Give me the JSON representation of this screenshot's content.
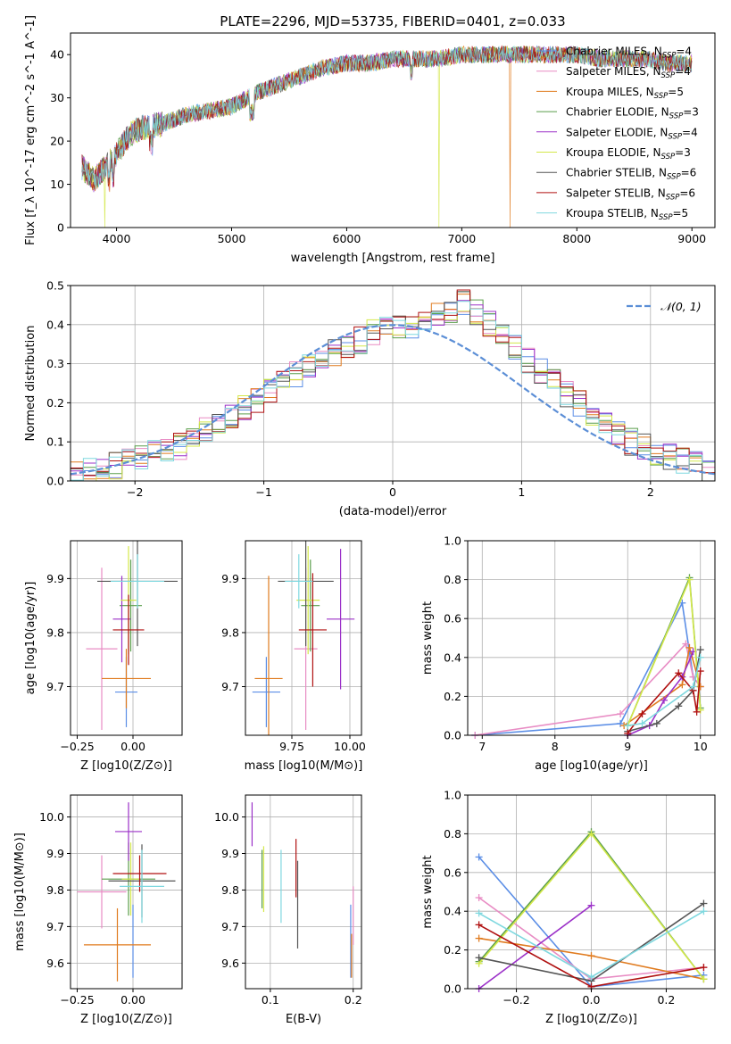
{
  "title": "PLATE=2296, MJD=53735, FIBERID=0401, z=0.033",
  "colors": {
    "Chabrier MILES": "#5b8ee6",
    "Salpeter MILES": "#e88cc4",
    "Kroupa MILES": "#e07b1f",
    "Chabrier ELODIE": "#5a9e4b",
    "Salpeter ELODIE": "#9b30c8",
    "Kroupa ELODIE": "#d4e84a",
    "Chabrier STELIB": "#555555",
    "Salpeter STELIB": "#b01010",
    "Kroupa STELIB": "#7fd8df",
    "normal_curve": "#5b8ed6"
  },
  "chart_data": [
    {
      "type": "line",
      "panel": "spectrum",
      "xlabel": "wavelength [Angstrom, rest frame]",
      "ylabel": "Flux [f_λ 10^-17 erg cm^-2 s^-1 A^-1]",
      "xlim": [
        3600,
        9200
      ],
      "ylim": [
        0,
        45
      ],
      "xticks": [
        "4000",
        "5000",
        "6000",
        "7000",
        "8000",
        "9000"
      ],
      "yticks": [
        "0",
        "10",
        "20",
        "30",
        "40"
      ],
      "grid": false,
      "legend_position": "upper-right",
      "legend": [
        {
          "name": "Chabrier MILES",
          "nssp": "4"
        },
        {
          "name": "Salpeter MILES",
          "nssp": "4"
        },
        {
          "name": "Kroupa MILES",
          "nssp": "5"
        },
        {
          "name": "Chabrier ELODIE",
          "nssp": "3"
        },
        {
          "name": "Salpeter ELODIE",
          "nssp": "4"
        },
        {
          "name": "Kroupa ELODIE",
          "nssp": "3"
        },
        {
          "name": "Chabrier STELIB",
          "nssp": "6"
        },
        {
          "name": "Salpeter STELIB",
          "nssp": "6"
        },
        {
          "name": "Kroupa STELIB",
          "nssp": "5"
        }
      ],
      "continuum": {
        "x": [
          3700,
          3800,
          3900,
          4000,
          4100,
          4200,
          4400,
          4600,
          4800,
          5000,
          5200,
          5400,
          5600,
          5800,
          6000,
          6200,
          6400,
          6600,
          6800,
          7000,
          7200,
          7400,
          7600,
          7800,
          8000,
          8200,
          8400,
          8600,
          8800,
          9000
        ],
        "y": [
          14,
          11,
          14,
          17,
          21,
          23,
          24,
          26,
          27,
          28,
          31,
          33,
          35,
          37,
          38,
          38,
          39,
          39,
          39,
          40,
          40,
          40,
          40,
          40,
          40,
          39,
          39,
          39,
          38,
          38
        ]
      },
      "dropouts": [
        {
          "series": "Kroupa ELODIE",
          "x": 3900
        },
        {
          "series": "Kroupa ELODIE",
          "x": 6800
        },
        {
          "series": "Kroupa MILES",
          "x": 7420
        }
      ]
    },
    {
      "type": "histogram",
      "panel": "residuals",
      "xlabel": "(data-model)/error",
      "ylabel": "Normed distribution",
      "xlim": [
        -2.5,
        2.5
      ],
      "ylim": [
        0,
        0.5
      ],
      "xticks": [
        "−2",
        "−1",
        "0",
        "1",
        "2"
      ],
      "yticks": [
        "0.0",
        "0.1",
        "0.2",
        "0.3",
        "0.4",
        "0.5"
      ],
      "grid": true,
      "bin_width": 0.1,
      "legend": [
        "𝒩(0, 1)"
      ],
      "legend_position": "upper-right",
      "envelope": [
        0.02,
        0.03,
        0.03,
        0.04,
        0.05,
        0.06,
        0.07,
        0.08,
        0.09,
        0.11,
        0.13,
        0.15,
        0.17,
        0.19,
        0.21,
        0.23,
        0.25,
        0.27,
        0.29,
        0.31,
        0.33,
        0.35,
        0.36,
        0.38,
        0.39,
        0.4,
        0.4,
        0.41,
        0.42,
        0.44,
        0.46,
        0.43,
        0.4,
        0.37,
        0.34,
        0.31,
        0.28,
        0.25,
        0.22,
        0.2,
        0.17,
        0.15,
        0.12,
        0.1,
        0.09,
        0.07,
        0.06,
        0.05,
        0.04,
        0.03
      ]
    },
    {
      "type": "scatter",
      "panel": "age-vs-Z",
      "xlabel": "Z [log10(Z/Z⊙)]",
      "ylabel": "age  [log10(age/yr)]",
      "xlim": [
        -0.28,
        0.22
      ],
      "ylim": [
        9.61,
        9.97
      ],
      "xticks": [
        "−0.25",
        "0.00"
      ],
      "yticks": [
        "9.7",
        "9.8",
        "9.9"
      ],
      "grid": true,
      "points": [
        {
          "series": "Chabrier MILES",
          "x": -0.03,
          "y": 9.69,
          "xerr": 0.05,
          "yerr": 0.065
        },
        {
          "series": "Salpeter MILES",
          "x": -0.14,
          "y": 9.77,
          "xerr": 0.07,
          "yerr": 0.15
        },
        {
          "series": "Kroupa MILES",
          "x": -0.03,
          "y": 9.715,
          "xerr": 0.11,
          "yerr": 0.055
        },
        {
          "series": "Chabrier ELODIE",
          "x": -0.01,
          "y": 9.85,
          "xerr": 0.05,
          "yerr": 0.085
        },
        {
          "series": "Salpeter ELODIE",
          "x": -0.05,
          "y": 9.825,
          "xerr": 0.04,
          "yerr": 0.08
        },
        {
          "series": "Kroupa ELODIE",
          "x": -0.02,
          "y": 9.86,
          "xerr": 0.035,
          "yerr": 0.1
        },
        {
          "series": "Chabrier STELIB",
          "x": 0.02,
          "y": 9.895,
          "xerr": 0.18,
          "yerr": 0.12
        },
        {
          "series": "Salpeter STELIB",
          "x": -0.02,
          "y": 9.805,
          "xerr": 0.07,
          "yerr": 0.065
        },
        {
          "series": "Kroupa STELIB",
          "x": 0.02,
          "y": 9.895,
          "xerr": 0.12,
          "yerr": 0.05
        }
      ]
    },
    {
      "type": "scatter",
      "panel": "age-vs-mass",
      "xlabel": "mass [log10(M/M⊙)]",
      "ylabel": "",
      "xlim": [
        9.55,
        10.05
      ],
      "ylim": [
        9.61,
        9.97
      ],
      "xticks": [
        "9.75",
        "10.00"
      ],
      "yticks": [
        "9.7",
        "9.8",
        "9.9"
      ],
      "grid": true,
      "points": [
        {
          "series": "Chabrier MILES",
          "x": 9.64,
          "y": 9.69,
          "xerr": 0.06,
          "yerr": 0.065
        },
        {
          "series": "Salpeter MILES",
          "x": 9.81,
          "y": 9.77,
          "xerr": 0.05,
          "yerr": 0.15
        },
        {
          "series": "Kroupa MILES",
          "x": 9.65,
          "y": 9.715,
          "xerr": 0.06,
          "yerr": 0.19
        },
        {
          "series": "Chabrier ELODIE",
          "x": 9.83,
          "y": 9.85,
          "xerr": 0.04,
          "yerr": 0.085
        },
        {
          "series": "Salpeter ELODIE",
          "x": 9.96,
          "y": 9.825,
          "xerr": 0.06,
          "yerr": 0.13
        },
        {
          "series": "Kroupa ELODIE",
          "x": 9.82,
          "y": 9.86,
          "xerr": 0.05,
          "yerr": 0.1
        },
        {
          "series": "Chabrier STELIB",
          "x": 9.81,
          "y": 9.895,
          "xerr": 0.12,
          "yerr": 0.12
        },
        {
          "series": "Salpeter STELIB",
          "x": 9.84,
          "y": 9.805,
          "xerr": 0.06,
          "yerr": 0.105
        },
        {
          "series": "Kroupa STELIB",
          "x": 9.78,
          "y": 9.895,
          "xerr": 0.06,
          "yerr": 0.05
        }
      ]
    },
    {
      "type": "line",
      "panel": "weight-vs-age",
      "xlabel": "age  [log10(age/yr)]",
      "ylabel": "mass weight",
      "xlim": [
        6.8,
        10.2
      ],
      "ylim": [
        0,
        1.0
      ],
      "xticks": [
        "7",
        "8",
        "9",
        "10"
      ],
      "yticks": [
        "0.0",
        "0.2",
        "0.4",
        "0.6",
        "0.8",
        "1.0"
      ],
      "grid": true,
      "series": [
        {
          "name": "Chabrier MILES",
          "x": [
            6.9,
            8.9,
            9.75,
            9.9,
            10.0
          ],
          "y": [
            0.0,
            0.06,
            0.68,
            0.3,
            0.25
          ]
        },
        {
          "name": "Salpeter MILES",
          "x": [
            6.9,
            8.9,
            9.8,
            9.9,
            10.0
          ],
          "y": [
            0.0,
            0.11,
            0.47,
            0.3,
            0.25
          ]
        },
        {
          "name": "Kroupa MILES",
          "x": [
            8.95,
            9.75,
            9.85,
            10.0
          ],
          "y": [
            0.05,
            0.26,
            0.45,
            0.25
          ]
        },
        {
          "name": "Chabrier ELODIE",
          "x": [
            9.0,
            9.85,
            10.0
          ],
          "y": [
            0.05,
            0.81,
            0.14
          ]
        },
        {
          "name": "Salpeter ELODIE",
          "x": [
            9.0,
            9.3,
            9.5,
            9.75,
            9.9
          ],
          "y": [
            0.0,
            0.05,
            0.18,
            0.3,
            0.43
          ]
        },
        {
          "name": "Kroupa ELODIE",
          "x": [
            9.0,
            9.85,
            10.0
          ],
          "y": [
            0.05,
            0.8,
            0.13
          ]
        },
        {
          "name": "Chabrier STELIB",
          "x": [
            9.0,
            9.4,
            9.7,
            9.9,
            10.0
          ],
          "y": [
            0.02,
            0.06,
            0.15,
            0.23,
            0.44
          ]
        },
        {
          "name": "Salpeter STELIB",
          "x": [
            9.0,
            9.2,
            9.7,
            9.9,
            9.95,
            10.0
          ],
          "y": [
            0.01,
            0.11,
            0.32,
            0.23,
            0.12,
            0.33
          ]
        },
        {
          "name": "Kroupa STELIB",
          "x": [
            9.0,
            9.2,
            9.9,
            10.0
          ],
          "y": [
            0.05,
            0.06,
            0.25,
            0.4
          ]
        }
      ]
    },
    {
      "type": "scatter",
      "panel": "mass-vs-Z",
      "xlabel": "Z [log10(Z/Z⊙)]",
      "ylabel": "mass [log10(M/M⊙)]",
      "xlim": [
        -0.28,
        0.22
      ],
      "ylim": [
        9.53,
        10.06
      ],
      "xticks": [
        "−0.25",
        "0.00"
      ],
      "yticks": [
        "9.6",
        "9.7",
        "9.8",
        "9.9",
        "10.0"
      ],
      "grid": true,
      "points": [
        {
          "series": "Chabrier MILES",
          "x": 0.0,
          "y": 9.66,
          "xerr": 0.0,
          "yerr": 0.1
        },
        {
          "series": "Salpeter MILES",
          "x": -0.14,
          "y": 9.795,
          "xerr": 0.11,
          "yerr": 0.1
        },
        {
          "series": "Kroupa MILES",
          "x": -0.07,
          "y": 9.65,
          "xerr": 0.15,
          "yerr": 0.1
        },
        {
          "series": "Chabrier ELODIE",
          "x": -0.02,
          "y": 9.83,
          "xerr": 0.12,
          "yerr": 0.1
        },
        {
          "series": "Salpeter ELODIE",
          "x": -0.02,
          "y": 9.96,
          "xerr": 0.06,
          "yerr": 0.08
        },
        {
          "series": "Kroupa ELODIE",
          "x": -0.01,
          "y": 9.83,
          "xerr": 0.04,
          "yerr": 0.1
        },
        {
          "series": "Chabrier STELIB",
          "x": 0.04,
          "y": 9.825,
          "xerr": 0.15,
          "yerr": 0.1
        },
        {
          "series": "Salpeter STELIB",
          "x": 0.03,
          "y": 9.845,
          "xerr": 0.12,
          "yerr": 0.05
        },
        {
          "series": "Kroupa STELIB",
          "x": 0.04,
          "y": 9.81,
          "xerr": 0.1,
          "yerr": 0.1
        }
      ]
    },
    {
      "type": "scatter",
      "panel": "mass-vs-ebv",
      "xlabel": "E(B-V)",
      "ylabel": "",
      "xlim": [
        0.07,
        0.21
      ],
      "ylim": [
        9.53,
        10.06
      ],
      "xticks": [
        "0.1",
        "0.2"
      ],
      "yticks": [
        "9.6",
        "9.7",
        "9.8",
        "9.9",
        "10.0"
      ],
      "grid": true,
      "points": [
        {
          "series": "Chabrier MILES",
          "x": 0.197,
          "y": 9.66,
          "yerr": 0.1
        },
        {
          "series": "Salpeter MILES",
          "x": 0.2,
          "y": 9.73,
          "yerr": 0.08
        },
        {
          "series": "Kroupa MILES",
          "x": 0.198,
          "y": 9.62,
          "yerr": 0.06
        },
        {
          "series": "Chabrier ELODIE",
          "x": 0.09,
          "y": 9.83,
          "yerr": 0.08
        },
        {
          "series": "Salpeter ELODIE",
          "x": 0.078,
          "y": 9.98,
          "yerr": 0.06
        },
        {
          "series": "Kroupa ELODIE",
          "x": 0.092,
          "y": 9.83,
          "yerr": 0.09
        },
        {
          "series": "Chabrier STELIB",
          "x": 0.133,
          "y": 9.76,
          "yerr": 0.12
        },
        {
          "series": "Salpeter STELIB",
          "x": 0.131,
          "y": 9.86,
          "yerr": 0.08
        },
        {
          "series": "Kroupa STELIB",
          "x": 0.113,
          "y": 9.81,
          "yerr": 0.1
        }
      ]
    },
    {
      "type": "line",
      "panel": "weight-vs-Z",
      "xlabel": "Z [log10(Z/Z⊙)]",
      "ylabel": "mass weight",
      "xlim": [
        -0.33,
        0.33
      ],
      "ylim": [
        0,
        1.0
      ],
      "xticks": [
        "−0.2",
        "0.0",
        "0.2"
      ],
      "yticks": [
        "0.0",
        "0.2",
        "0.4",
        "0.6",
        "0.8",
        "1.0"
      ],
      "grid": true,
      "series": [
        {
          "name": "Chabrier MILES",
          "x": [
            -0.3,
            0.0,
            0.3
          ],
          "y": [
            0.68,
            0.01,
            0.07
          ]
        },
        {
          "name": "Salpeter MILES",
          "x": [
            -0.3,
            0.0,
            0.3
          ],
          "y": [
            0.47,
            0.05,
            0.11
          ]
        },
        {
          "name": "Kroupa MILES",
          "x": [
            -0.3,
            0.0,
            0.3
          ],
          "y": [
            0.26,
            0.17,
            0.05
          ]
        },
        {
          "name": "Chabrier ELODIE",
          "x": [
            -0.3,
            0.0,
            0.3
          ],
          "y": [
            0.14,
            0.81,
            0.05
          ]
        },
        {
          "name": "Salpeter ELODIE",
          "x": [
            -0.3,
            0.0
          ],
          "y": [
            0.0,
            0.43
          ]
        },
        {
          "name": "Kroupa ELODIE",
          "x": [
            -0.3,
            0.0,
            0.3
          ],
          "y": [
            0.13,
            0.8,
            0.05
          ]
        },
        {
          "name": "Chabrier STELIB",
          "x": [
            -0.3,
            0.0,
            0.3
          ],
          "y": [
            0.16,
            0.04,
            0.44
          ]
        },
        {
          "name": "Salpeter STELIB",
          "x": [
            -0.3,
            0.0,
            0.3
          ],
          "y": [
            0.33,
            0.01,
            0.11
          ]
        },
        {
          "name": "Kroupa STELIB",
          "x": [
            -0.3,
            0.0,
            0.3
          ],
          "y": [
            0.39,
            0.06,
            0.4
          ]
        }
      ]
    }
  ]
}
